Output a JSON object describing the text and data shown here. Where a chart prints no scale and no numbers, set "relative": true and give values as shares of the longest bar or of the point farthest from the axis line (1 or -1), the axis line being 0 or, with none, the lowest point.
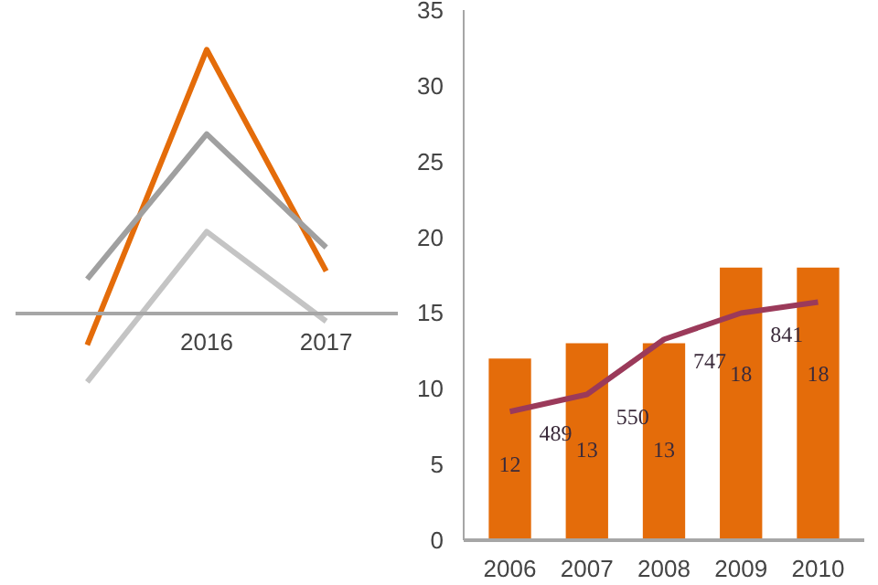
{
  "chart_data": [
    {
      "type": "line",
      "relative": true,
      "categories": [
        null,
        "2016",
        "2017"
      ],
      "tick_labels": "x",
      "grid": false,
      "series": [
        {
          "color": "#e46c0a",
          "values": [
            -0.12,
            1,
            0.16
          ]
        },
        {
          "color": "#a0a0a0",
          "values": [
            0.13,
            0.68,
            0.25
          ]
        },
        {
          "color": "#c4c4c4",
          "values": [
            -0.26,
            0.31,
            -0.03
          ]
        }
      ]
    },
    {
      "type": "bar",
      "categories": [
        "2006",
        "2007",
        "2008",
        "2009",
        "2010"
      ],
      "ylim": [
        0,
        35
      ],
      "yticks": [
        0,
        5,
        10,
        15,
        20,
        25,
        30,
        35
      ],
      "y2lim": [
        29,
        1924
      ],
      "grid": false,
      "series": [
        {
          "type": "bar",
          "color": "#e46c0a",
          "values": [
            12,
            13,
            13,
            18,
            18
          ],
          "value_labels": [
            "12",
            "13",
            "13",
            "18",
            "18"
          ]
        },
        {
          "type": "line",
          "axis": "y2",
          "color": "#9b3a5a",
          "values": [
            489,
            550,
            747,
            841,
            880
          ],
          "value_labels": [
            "489",
            "550",
            "747",
            "841",
            null
          ]
        }
      ]
    }
  ]
}
